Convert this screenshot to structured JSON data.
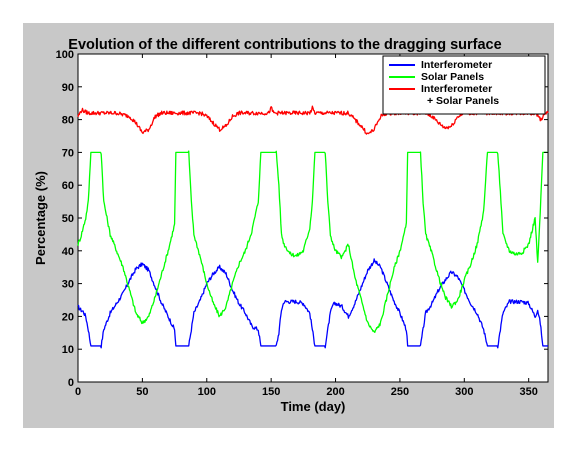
{
  "chart_data": {
    "type": "line",
    "title": "Evolution of the different contributions to the dragging surface",
    "xlabel": "Time (day)",
    "ylabel": "Percentage (%)",
    "xlim": [
      0,
      365
    ],
    "ylim": [
      0,
      100
    ],
    "xticks": [
      0,
      50,
      100,
      150,
      200,
      250,
      300,
      350
    ],
    "yticks": [
      0,
      10,
      20,
      30,
      40,
      50,
      60,
      70,
      80,
      90,
      100
    ],
    "grid": false,
    "legend_position": "top-right",
    "series": [
      {
        "name": "Interferometer",
        "color": "#0000ff",
        "x": [
          0,
          2,
          4,
          6,
          8,
          10,
          12,
          14,
          16,
          18,
          20,
          25,
          30,
          35,
          40,
          45,
          50,
          55,
          60,
          65,
          70,
          75,
          76,
          78,
          80,
          82,
          84,
          86,
          88,
          90,
          95,
          100,
          105,
          110,
          115,
          120,
          125,
          130,
          135,
          140,
          142,
          144,
          146,
          148,
          150,
          152,
          154,
          156,
          158,
          160,
          165,
          170,
          175,
          180,
          182,
          184,
          186,
          188,
          190,
          192,
          194,
          196,
          198,
          200,
          205,
          210,
          215,
          220,
          225,
          230,
          235,
          240,
          245,
          250,
          255,
          256,
          258,
          260,
          262,
          264,
          266,
          268,
          270,
          275,
          280,
          285,
          290,
          295,
          300,
          305,
          310,
          315,
          318,
          320,
          322,
          324,
          326,
          328,
          330,
          335,
          340,
          345,
          350,
          355,
          357,
          359,
          361,
          363,
          365
        ],
        "y": [
          23,
          22,
          21.5,
          20,
          16,
          11,
          11,
          11,
          11,
          11,
          16,
          21,
          24,
          27,
          31,
          34.5,
          36,
          34,
          29,
          24,
          20,
          16,
          11,
          11,
          11,
          11,
          11,
          11,
          16,
          21,
          25,
          30,
          33,
          35,
          33,
          28,
          24,
          21,
          17,
          16,
          11,
          11,
          11,
          11,
          11,
          11,
          11,
          15,
          22,
          24.5,
          24.5,
          24.5,
          24,
          21,
          16,
          11,
          11,
          11,
          11,
          11,
          16,
          21,
          23.5,
          24,
          23,
          20,
          24,
          29,
          34,
          37,
          35,
          30,
          25,
          21,
          16,
          11,
          11,
          11,
          11,
          11,
          11,
          16,
          21,
          24,
          28,
          31,
          33.5,
          32,
          28,
          24,
          21,
          16,
          11,
          11,
          11,
          11,
          11,
          16,
          21,
          24.5,
          24.5,
          24.5,
          24,
          20,
          22,
          18,
          11,
          11,
          11
        ]
      },
      {
        "name": "Solar Panels",
        "color": "#00ff00",
        "x": [
          0,
          2,
          4,
          6,
          8,
          10,
          12,
          14,
          16,
          18,
          20,
          25,
          30,
          35,
          40,
          45,
          50,
          55,
          60,
          65,
          70,
          75,
          76,
          78,
          80,
          82,
          84,
          86,
          88,
          90,
          95,
          100,
          105,
          110,
          115,
          120,
          125,
          130,
          135,
          140,
          142,
          144,
          146,
          148,
          150,
          152,
          154,
          156,
          158,
          160,
          165,
          170,
          175,
          180,
          182,
          184,
          186,
          188,
          190,
          192,
          194,
          196,
          198,
          200,
          205,
          210,
          215,
          220,
          225,
          230,
          235,
          240,
          245,
          250,
          255,
          256,
          258,
          260,
          262,
          264,
          266,
          268,
          270,
          275,
          280,
          285,
          290,
          295,
          300,
          305,
          310,
          315,
          318,
          320,
          322,
          324,
          326,
          328,
          330,
          335,
          340,
          345,
          350,
          355,
          357,
          359,
          361,
          363,
          365
        ],
        "y": [
          42,
          44,
          47,
          50,
          55,
          70,
          70,
          70,
          70,
          70,
          55,
          45,
          40,
          35,
          28,
          21,
          18,
          20,
          26,
          33,
          40,
          48,
          70,
          70,
          70,
          70,
          70,
          70,
          55,
          45,
          38,
          30,
          24,
          20,
          23,
          30,
          36,
          40,
          46,
          55,
          70,
          70,
          70,
          70,
          70,
          70,
          70,
          60,
          45,
          42,
          39,
          38.5,
          40,
          47,
          55,
          70,
          70,
          70,
          70,
          70,
          55,
          45,
          42,
          40,
          38,
          42,
          32,
          25,
          18,
          15,
          18,
          26,
          34,
          40,
          48,
          70,
          70,
          70,
          70,
          70,
          70,
          55,
          45,
          39,
          32,
          26,
          23,
          25,
          31,
          36,
          42,
          52,
          70,
          70,
          70,
          70,
          70,
          58,
          45,
          40,
          39,
          39.5,
          42,
          50,
          36,
          52,
          70,
          70,
          70
        ]
      },
      {
        "name": "Interferometer\n+ Solar Panels",
        "color": "#ff0000",
        "x": [
          0,
          3,
          5,
          8,
          12,
          20,
          30,
          40,
          45,
          50,
          55,
          60,
          65,
          70,
          75,
          80,
          85,
          90,
          95,
          100,
          105,
          110,
          115,
          120,
          125,
          130,
          140,
          148,
          150,
          152,
          160,
          170,
          180,
          182,
          184,
          190,
          200,
          210,
          215,
          220,
          225,
          230,
          235,
          240,
          250,
          260,
          270,
          275,
          280,
          285,
          290,
          295,
          300,
          310,
          320,
          330,
          340,
          350,
          355,
          358,
          360,
          362,
          365
        ],
        "y": [
          81,
          83,
          82.5,
          82,
          82,
          82,
          82,
          81,
          79,
          76,
          77,
          81,
          82,
          82,
          82,
          82,
          82,
          82,
          82,
          81,
          79,
          77,
          78,
          81,
          82,
          82,
          82,
          82,
          83.5,
          82,
          82,
          82,
          82,
          83.5,
          82,
          82,
          82,
          82,
          80,
          78,
          75.5,
          77,
          81,
          82,
          82,
          82,
          82,
          81,
          79,
          77.5,
          78,
          81,
          82,
          82,
          82,
          82,
          82,
          82,
          82,
          81,
          79.5,
          82,
          82
        ]
      }
    ]
  }
}
